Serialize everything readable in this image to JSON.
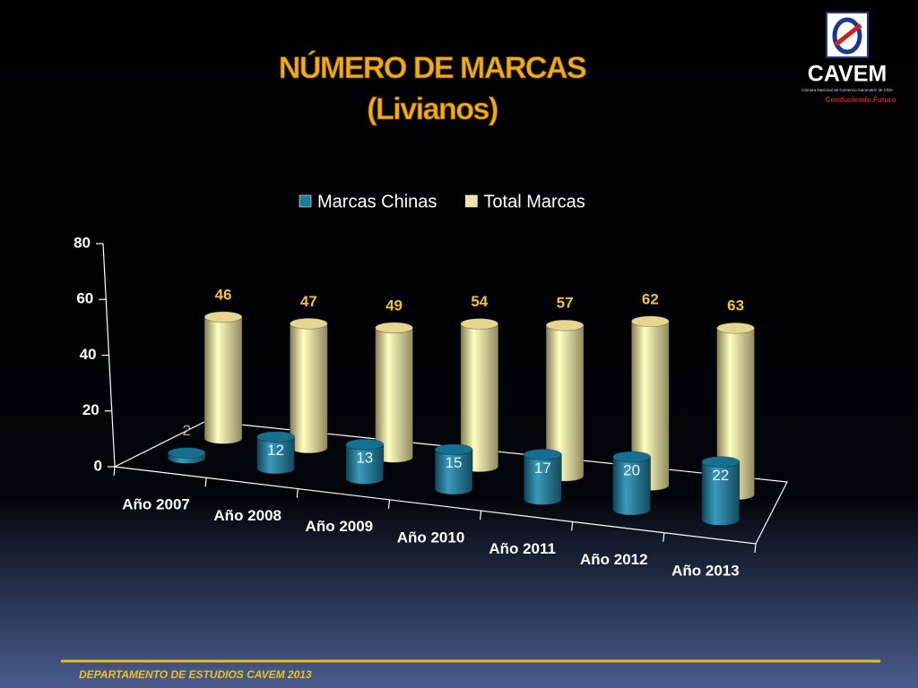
{
  "chart_data": {
    "type": "bar3d",
    "title": "NÚMERO DE MARCAS",
    "subtitle": "(Livianos)",
    "categories": [
      "Año 2007",
      "Año 2008",
      "Año 2009",
      "Año 2010",
      "Año 2011",
      "Año 2012",
      "Año 2013"
    ],
    "series": [
      {
        "name": "Marcas Chinas",
        "color": "#1c7c9e",
        "values": [
          2,
          12,
          13,
          15,
          17,
          20,
          22
        ]
      },
      {
        "name": "Total Marcas",
        "color": "#f2e2a2",
        "values": [
          46,
          47,
          49,
          54,
          57,
          62,
          63
        ]
      }
    ],
    "ylim": [
      0,
      80
    ],
    "yticks": [
      0,
      20,
      40,
      60,
      80
    ],
    "grid": false,
    "legend": "top"
  },
  "logo": {
    "name": "CAVEM",
    "tagline": "Cámara Nacional de Comercio Automotriz de Chile",
    "motto": "Conduciendo Futuro"
  },
  "footer": "DEPARTAMENTO DE ESTUDIOS CAVEM 2013"
}
